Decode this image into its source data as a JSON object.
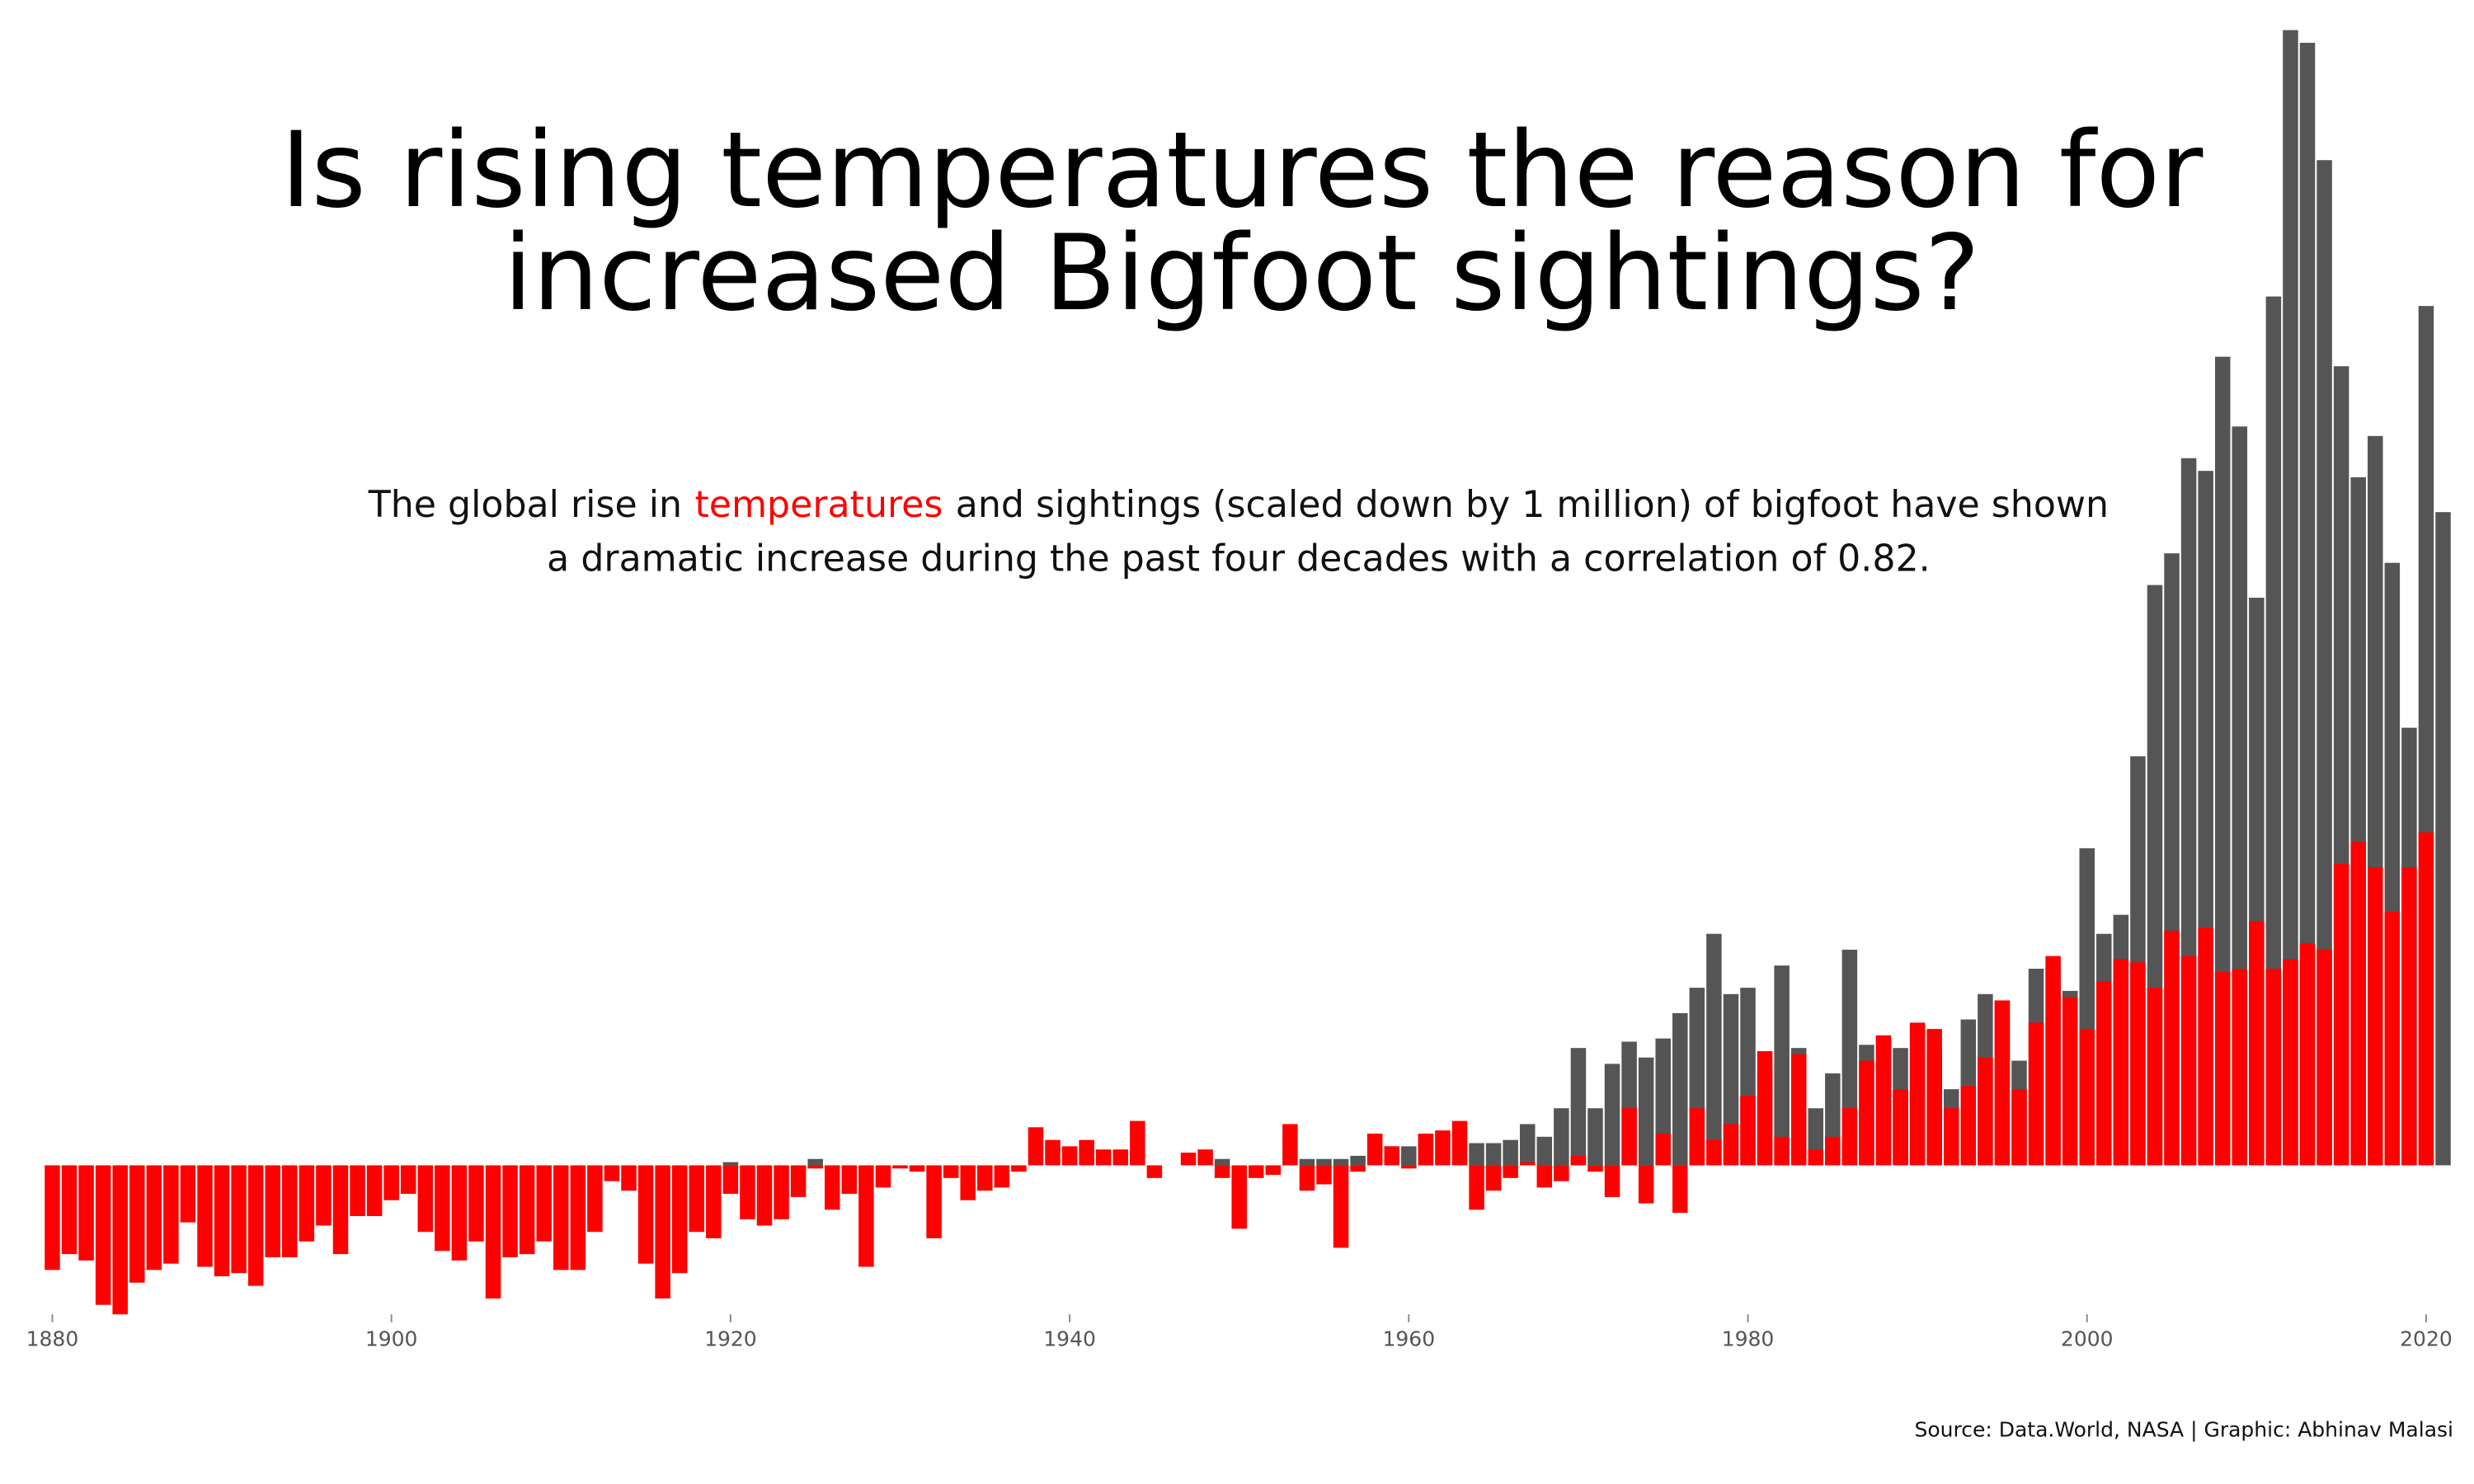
{
  "chart_data": {
    "type": "bar",
    "title_lines": [
      "Is rising temperatures the reason for",
      "increased Bigfoot sightings?"
    ],
    "subtitle": {
      "line1_before": "The global rise in",
      "highlight": "temperatures",
      "line1_after": "and sightings (scaled down by 1 million) of bigfoot have shown",
      "line2": "a dramatic increase during the past four decades with a correlation of 0.82.",
      "highlight_color": "#ff0000"
    },
    "source": "Source: Data.World, NASA | Graphic: Abhinav Malasi",
    "x": [
      1880,
      1881,
      1882,
      1883,
      1884,
      1885,
      1886,
      1887,
      1888,
      1889,
      1890,
      1891,
      1892,
      1893,
      1894,
      1895,
      1896,
      1897,
      1898,
      1899,
      1900,
      1901,
      1902,
      1903,
      1904,
      1905,
      1906,
      1907,
      1908,
      1909,
      1910,
      1911,
      1912,
      1913,
      1914,
      1915,
      1916,
      1917,
      1918,
      1919,
      1920,
      1921,
      1922,
      1923,
      1924,
      1925,
      1926,
      1927,
      1928,
      1929,
      1930,
      1931,
      1932,
      1933,
      1934,
      1935,
      1936,
      1937,
      1938,
      1939,
      1940,
      1941,
      1942,
      1943,
      1944,
      1945,
      1946,
      1947,
      1948,
      1949,
      1950,
      1951,
      1952,
      1953,
      1954,
      1955,
      1956,
      1957,
      1958,
      1959,
      1960,
      1961,
      1962,
      1963,
      1964,
      1965,
      1966,
      1967,
      1968,
      1969,
      1970,
      1971,
      1972,
      1973,
      1974,
      1975,
      1976,
      1977,
      1978,
      1979,
      1980,
      1981,
      1982,
      1983,
      1984,
      1985,
      1986,
      1987,
      1988,
      1989,
      1990,
      1991,
      1992,
      1993,
      1994,
      1995,
      1996,
      1997,
      1998,
      1999,
      2000,
      2001,
      2002,
      2003,
      2004,
      2005,
      2006,
      2007,
      2008,
      2009,
      2010,
      2011,
      2012,
      2013,
      2014,
      2015,
      2016,
      2017,
      2018,
      2019,
      2020,
      2021
    ],
    "series": [
      {
        "color": "#555555",
        "values": [
          null,
          null,
          null,
          null,
          null,
          null,
          null,
          null,
          null,
          null,
          null,
          null,
          null,
          null,
          null,
          null,
          null,
          null,
          null,
          null,
          null,
          null,
          null,
          null,
          null,
          null,
          null,
          null,
          null,
          null,
          null,
          null,
          null,
          null,
          null,
          null,
          null,
          null,
          null,
          null,
          0.01,
          null,
          null,
          null,
          null,
          0.02,
          null,
          null,
          null,
          null,
          null,
          null,
          null,
          null,
          null,
          null,
          null,
          null,
          null,
          null,
          null,
          null,
          null,
          null,
          null,
          null,
          null,
          null,
          null,
          0.02,
          null,
          null,
          null,
          null,
          0.02,
          0.02,
          0.02,
          0.03,
          null,
          0.06,
          0.06,
          0.1,
          null,
          null,
          0.07,
          0.07,
          0.08,
          0.13,
          0.09,
          0.18,
          0.37,
          0.18,
          0.32,
          0.39,
          0.34,
          0.4,
          0.48,
          0.56,
          0.73,
          0.54,
          0.56,
          0.3,
          0.63,
          0.37,
          0.18,
          0.29,
          0.68,
          0.38,
          0.4,
          0.37,
          0.44,
          0.36,
          0.24,
          0.46,
          0.54,
          0.52,
          0.33,
          0.62,
          0.62,
          0.55,
          1.0,
          0.73,
          0.79,
          1.29,
          1.83,
          1.93,
          2.23,
          2.19,
          2.55,
          2.33,
          1.79,
          2.74,
          3.58,
          3.54,
          3.17,
          2.52,
          2.17,
          2.3,
          1.9,
          1.38,
          2.71,
          2.06
        ]
      },
      {
        "color": "#ff0000",
        "values": [
          -0.33,
          -0.28,
          -0.3,
          -0.44,
          -0.47,
          -0.37,
          -0.33,
          -0.31,
          -0.18,
          -0.32,
          -0.35,
          -0.34,
          -0.38,
          -0.29,
          -0.29,
          -0.24,
          -0.19,
          -0.28,
          -0.16,
          -0.16,
          -0.11,
          -0.09,
          -0.21,
          -0.27,
          -0.3,
          -0.24,
          -0.42,
          -0.29,
          -0.28,
          -0.24,
          -0.33,
          -0.33,
          -0.21,
          -0.05,
          -0.08,
          -0.31,
          -0.42,
          -0.34,
          -0.21,
          -0.23,
          -0.09,
          -0.17,
          -0.19,
          -0.17,
          -0.1,
          -0.01,
          -0.14,
          -0.09,
          -0.32,
          -0.07,
          -0.01,
          -0.02,
          -0.23,
          -0.04,
          -0.11,
          -0.08,
          -0.07,
          -0.02,
          0.12,
          0.08,
          0.06,
          0.08,
          0.05,
          0.05,
          0.14,
          -0.04,
          0,
          0.04,
          0.05,
          -0.04,
          -0.2,
          -0.04,
          -0.03,
          0.13,
          -0.08,
          -0.06,
          -0.26,
          -0.02,
          0.1,
          0.06,
          -0.01,
          0.1,
          0.11,
          0.14,
          -0.14,
          -0.08,
          -0.04,
          0.01,
          -0.07,
          -0.05,
          0.03,
          -0.02,
          -0.1,
          0.18,
          -0.12,
          0.1,
          -0.15,
          0.18,
          0.08,
          0.13,
          0.22,
          0.36,
          0.09,
          0.35,
          0.05,
          0.09,
          0.18,
          0.33,
          0.41,
          0.24,
          0.45,
          0.43,
          0.18,
          0.25,
          0.34,
          0.52,
          0.24,
          0.45,
          0.66,
          0.53,
          0.43,
          0.58,
          0.65,
          0.64,
          0.56,
          0.74,
          0.66,
          0.75,
          0.61,
          0.62,
          0.77,
          0.62,
          0.65,
          0.7,
          0.68,
          0.95,
          1.02,
          0.94,
          0.8,
          0.94,
          1.05,
          null
        ]
      }
    ],
    "xlim": [
      1879,
      2022
    ],
    "xticks": [
      1880,
      1900,
      1920,
      1940,
      1960,
      1980,
      2000,
      2020
    ],
    "ylim": [
      -0.5,
      3.6
    ]
  }
}
